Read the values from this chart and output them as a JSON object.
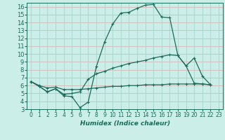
{
  "xlabel": "Humidex (Indice chaleur)",
  "background_color": "#cceee8",
  "grid_color_h": "#d4b8b8",
  "grid_color_v": "#a8d4cc",
  "line_color": "#1a6b5a",
  "xlim": [
    -0.5,
    23.5
  ],
  "ylim": [
    3,
    16.5
  ],
  "xticks": [
    0,
    1,
    2,
    3,
    4,
    5,
    6,
    7,
    8,
    9,
    10,
    11,
    12,
    13,
    14,
    15,
    16,
    17,
    18,
    19,
    20,
    21,
    22,
    23
  ],
  "yticks": [
    3,
    4,
    5,
    6,
    7,
    8,
    9,
    10,
    11,
    12,
    13,
    14,
    15,
    16
  ],
  "series1_x": [
    0,
    1,
    2,
    3,
    4,
    5,
    6,
    7,
    8,
    9,
    10,
    11,
    12,
    13,
    14,
    15,
    16,
    17,
    18,
    19,
    20,
    21,
    22
  ],
  "series1_y": [
    6.5,
    5.9,
    5.2,
    5.6,
    4.7,
    4.6,
    3.2,
    3.9,
    8.4,
    11.5,
    13.8,
    15.2,
    15.3,
    15.8,
    16.2,
    16.3,
    14.7,
    14.6,
    9.8,
    8.5,
    9.5,
    7.2,
    6.1
  ],
  "series2_x": [
    0,
    1,
    2,
    3,
    4,
    5,
    6,
    7,
    8,
    9,
    10,
    11,
    12,
    13,
    14,
    15,
    16,
    17,
    18,
    19,
    20,
    21,
    22
  ],
  "series2_y": [
    6.5,
    5.9,
    5.2,
    5.6,
    4.9,
    5.0,
    5.2,
    6.8,
    7.5,
    7.8,
    8.2,
    8.5,
    8.8,
    9.0,
    9.2,
    9.5,
    9.7,
    9.9,
    9.8,
    8.5,
    6.3,
    6.2,
    6.1
  ],
  "series3_x": [
    0,
    1,
    2,
    3,
    4,
    5,
    6,
    7,
    8,
    9,
    10,
    11,
    12,
    13,
    14,
    15,
    16,
    17,
    18,
    19,
    20,
    21,
    22
  ],
  "series3_y": [
    6.5,
    6.0,
    5.7,
    5.8,
    5.5,
    5.5,
    5.5,
    5.6,
    5.7,
    5.8,
    5.9,
    5.9,
    6.0,
    6.0,
    6.1,
    6.1,
    6.1,
    6.2,
    6.2,
    6.2,
    6.2,
    6.2,
    6.1
  ]
}
